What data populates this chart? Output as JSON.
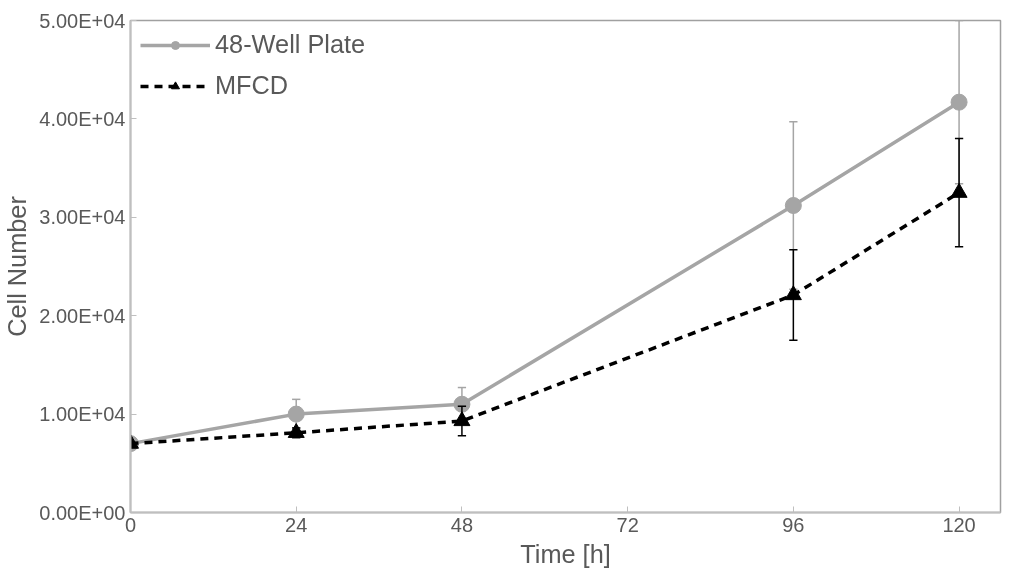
{
  "chart_data": {
    "type": "line",
    "xlabel": "Time [h]",
    "ylabel": "Cell Number",
    "x": [
      0,
      24,
      48,
      96,
      120
    ],
    "series": [
      {
        "name": "48-Well Plate",
        "color": "#a5a5a5",
        "values": [
          7000,
          10000,
          11000,
          31200,
          41700
        ],
        "errors": [
          null,
          1500,
          1700,
          8500,
          8300
        ],
        "marker": "circle",
        "line_style": "solid"
      },
      {
        "name": "MFCD",
        "color": "#000000",
        "values": [
          7000,
          8100,
          9300,
          22100,
          32500
        ],
        "errors": [
          null,
          500,
          1500,
          4600,
          5500
        ],
        "marker": "triangle",
        "line_style": "dashed"
      }
    ],
    "xlim": [
      0,
      126
    ],
    "xticks": [
      0,
      24,
      48,
      72,
      96,
      120
    ],
    "ylim": [
      0,
      50000
    ],
    "yticks": [
      {
        "value": 0,
        "label": "0.00E+00"
      },
      {
        "value": 10000,
        "label": "1.00E+04"
      },
      {
        "value": 20000,
        "label": "2.00E+04"
      },
      {
        "value": 30000,
        "label": "3.00E+04"
      },
      {
        "value": 40000,
        "label": "4.00E+04"
      },
      {
        "value": 50000,
        "label": "5.00E+04"
      }
    ],
    "grid": false,
    "legend": "top left"
  }
}
